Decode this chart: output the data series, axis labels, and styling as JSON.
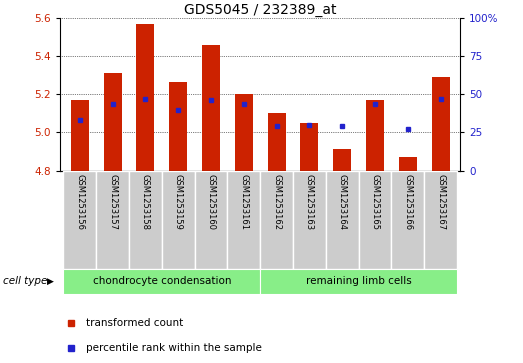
{
  "title": "GDS5045 / 232389_at",
  "samples": [
    "GSM1253156",
    "GSM1253157",
    "GSM1253158",
    "GSM1253159",
    "GSM1253160",
    "GSM1253161",
    "GSM1253162",
    "GSM1253163",
    "GSM1253164",
    "GSM1253165",
    "GSM1253166",
    "GSM1253167"
  ],
  "bar_values": [
    5.17,
    5.31,
    5.57,
    5.265,
    5.46,
    5.2,
    5.1,
    5.05,
    4.915,
    5.17,
    4.87,
    5.29
  ],
  "bar_base": 4.8,
  "percentile_values": [
    33,
    44,
    47,
    40,
    46,
    44,
    29,
    30,
    29,
    44,
    27,
    47
  ],
  "ylim_left": [
    4.8,
    5.6
  ],
  "ylim_right": [
    0,
    100
  ],
  "yticks_left": [
    4.8,
    5.0,
    5.2,
    5.4,
    5.6
  ],
  "yticks_right": [
    0,
    25,
    50,
    75,
    100
  ],
  "ytick_labels_right": [
    "0",
    "25",
    "50",
    "75",
    "100%"
  ],
  "bar_color": "#cc2200",
  "percentile_color": "#2222cc",
  "group1_label": "chondrocyte condensation",
  "group2_label": "remaining limb cells",
  "group1_count": 6,
  "group2_count": 6,
  "cell_type_label": "cell type",
  "legend_bar": "transformed count",
  "legend_dot": "percentile rank within the sample",
  "group_bg_color": "#88ee88",
  "sample_bg_color": "#cccccc",
  "title_fontsize": 10,
  "tick_fontsize": 7.5,
  "label_fontsize": 7.5,
  "sample_fontsize": 6.0,
  "bar_width": 0.55
}
